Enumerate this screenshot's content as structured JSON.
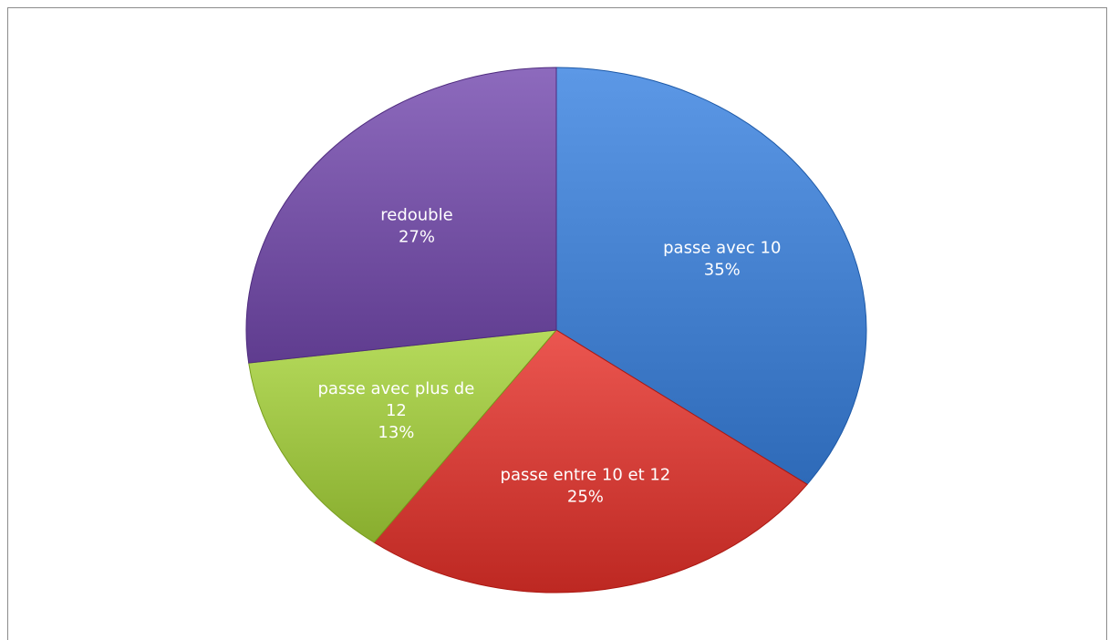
{
  "chart_data": {
    "type": "pie",
    "title": "",
    "start_angle_deg": 0,
    "direction": "clockwise",
    "slices": [
      {
        "name": "passe avec 10",
        "value": 35,
        "percent_label": "35%",
        "color": "#4a86d4",
        "label_lines": [
          "passe avec 10",
          "35%"
        ],
        "label_color": "#ffffff"
      },
      {
        "name": "passe entre 10 et 12",
        "value": 25,
        "percent_label": "25%",
        "color": "#d9443e",
        "label_lines": [
          "passe entre 10 et 12",
          "25%"
        ],
        "label_color": "#ffffff"
      },
      {
        "name": "passe avec plus de 12",
        "value": 13,
        "percent_label": "13%",
        "color": "#a4c94a",
        "label_lines": [
          "passe avec plus de",
          "12",
          "13%"
        ],
        "label_color": "#111111"
      },
      {
        "name": "redouble",
        "value": 27,
        "percent_label": "27%",
        "color": "#7b58ab",
        "label_lines": [
          "redouble",
          "27%"
        ],
        "label_color": "#ffffff"
      }
    ],
    "legend": "none"
  }
}
